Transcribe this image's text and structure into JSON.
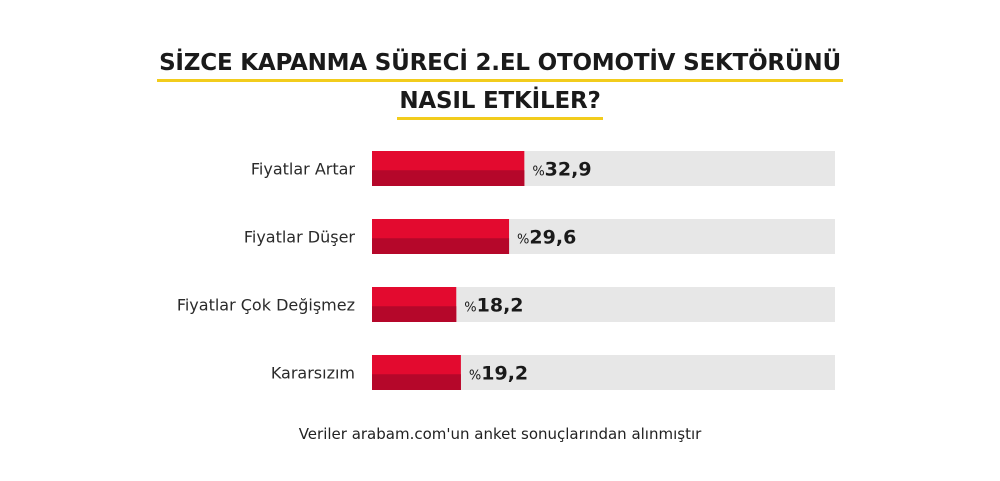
{
  "title": {
    "line1": "SİZCE KAPANMA SÜRECİ 2.EL OTOMOTİV SEKTÖRÜNÜ",
    "line2": "NASIL ETKİLER?"
  },
  "chart_data": {
    "type": "bar",
    "orientation": "horizontal",
    "categories": [
      "Fiyatlar Artar",
      "Fiyatlar Düşer",
      "Fiyatlar Çok Değişmez",
      "Kararsızım"
    ],
    "values": [
      32.9,
      29.6,
      18.2,
      19.2
    ],
    "value_labels": [
      "32,9",
      "29,6",
      "18,2",
      "19,2"
    ],
    "value_prefix": "%",
    "xlim": [
      0,
      100
    ],
    "grid": false,
    "legend": "none"
  },
  "colors": {
    "bar": "#e30a2f",
    "bar_shade": "#b5072a",
    "track": "#e7e7e7",
    "title_underline": "#f2cc1c"
  },
  "footer": "Veriler arabam.com'un anket sonuçlarından alınmıştır"
}
